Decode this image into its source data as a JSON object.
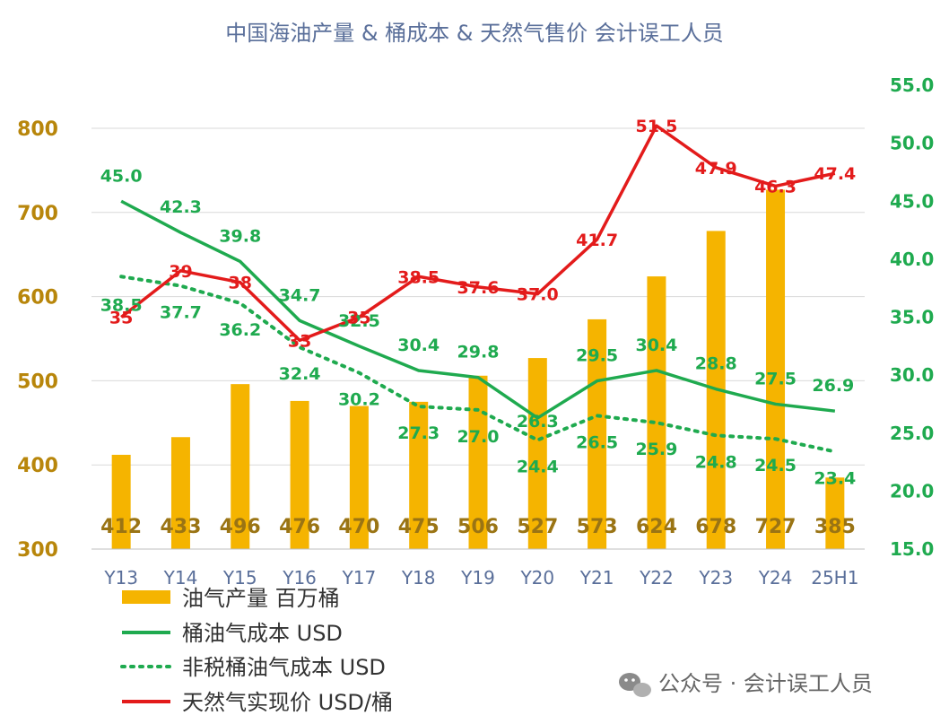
{
  "chart_data": {
    "type": "bar",
    "title": "中国海油产量 & 桶成本 & 天然气售价 会计误工人员",
    "categories": [
      "Y13",
      "Y14",
      "Y15",
      "Y16",
      "Y17",
      "Y18",
      "Y19",
      "Y20",
      "Y21",
      "Y22",
      "Y23",
      "Y24",
      "25H1"
    ],
    "y_left": {
      "ticks": [
        "300",
        "400",
        "500",
        "600",
        "700",
        "800"
      ],
      "range": [
        300,
        800
      ]
    },
    "y_right": {
      "ticks": [
        "15.0",
        "20.0",
        "25.0",
        "30.0",
        "35.0",
        "40.0",
        "45.0",
        "50.0",
        "55.0"
      ],
      "range": [
        15,
        55
      ]
    },
    "series": [
      {
        "name": "油气产量 百万桶",
        "type": "bar",
        "axis": "left",
        "color": "#f5b400",
        "values": [
          412,
          433,
          496,
          476,
          470,
          475,
          506,
          527,
          573,
          624,
          678,
          727,
          385
        ],
        "labels": [
          "412",
          "433",
          "496",
          "476",
          "470",
          "475",
          "506",
          "527",
          "573",
          "624",
          "678",
          "727",
          "385"
        ]
      },
      {
        "name": "桶油气成本 USD",
        "type": "line",
        "axis": "right",
        "color": "#1faa4f",
        "style": "solid",
        "values": [
          45.0,
          42.3,
          39.8,
          34.7,
          32.5,
          30.4,
          29.8,
          26.3,
          29.5,
          30.4,
          28.8,
          27.5,
          26.9
        ],
        "labels": [
          "45.0",
          "42.3",
          "39.8",
          "34.7",
          "32.5",
          "30.4",
          "29.8",
          "26.3",
          "29.5",
          "30.4",
          "28.8",
          "27.5",
          "26.9"
        ]
      },
      {
        "name": "非税桶油气成本 USD",
        "type": "line",
        "axis": "right",
        "color": "#1faa4f",
        "style": "dotted",
        "values": [
          38.5,
          37.7,
          36.2,
          32.4,
          30.2,
          27.3,
          27.0,
          24.4,
          26.5,
          25.9,
          24.8,
          24.5,
          23.4
        ],
        "labels": [
          "38.5",
          "37.7",
          "36.2",
          "32.4",
          "30.2",
          "27.3",
          "27.0",
          "24.4",
          "26.5",
          "25.9",
          "24.8",
          "24.5",
          "23.4"
        ]
      },
      {
        "name": "天然气实现价 USD/桶",
        "type": "line",
        "axis": "right",
        "color": "#e31b1b",
        "style": "solid",
        "values": [
          35,
          39,
          38,
          33,
          35,
          38.5,
          37.6,
          37.0,
          41.7,
          51.5,
          47.9,
          46.3,
          47.4
        ],
        "labels": [
          "35",
          "39",
          "38",
          "33",
          "35",
          "38.5",
          "37.6",
          "37.0",
          "41.7",
          "51.5",
          "47.9",
          "46.3",
          "47.4"
        ]
      }
    ],
    "legend_position": "bottom-left",
    "grid": true
  },
  "watermark": "公众号 · 会计误工人员"
}
